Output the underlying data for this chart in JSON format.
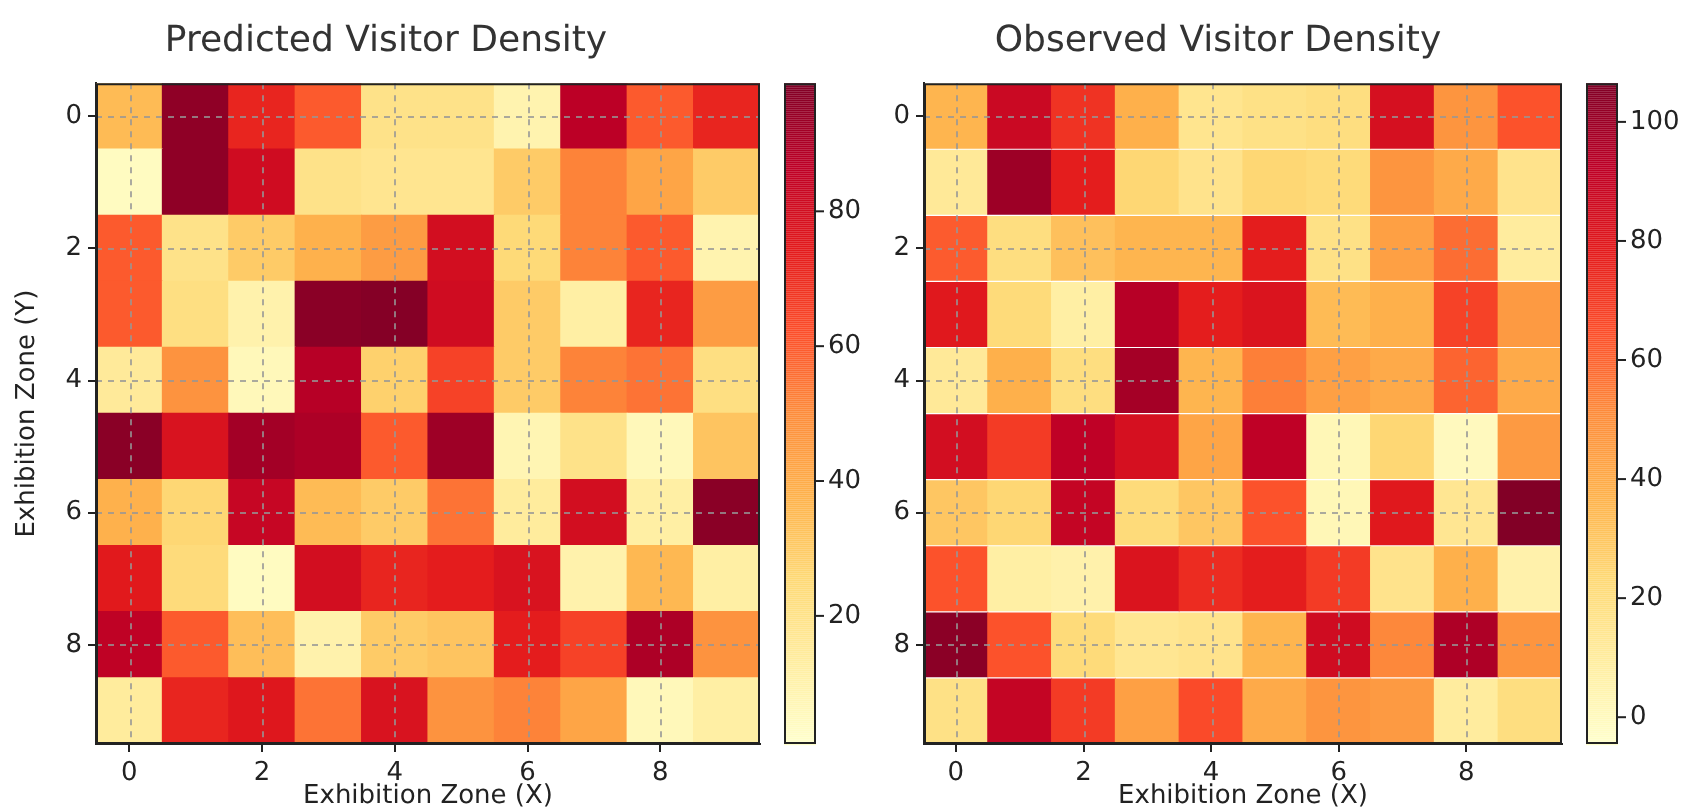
{
  "chart_data": [
    {
      "type": "heatmap",
      "title": "Predicted Visitor Density",
      "xlabel": "Exhibition Zone (X)",
      "ylabel": "Exhibition Zone (Y)",
      "categories": [
        "0",
        null,
        "2",
        null,
        "4",
        null,
        "6",
        null,
        "8",
        null
      ],
      "y_categories": [
        "0",
        null,
        "2",
        null,
        "4",
        null,
        "6",
        null,
        "8",
        null
      ],
      "cells": [
        [
          35,
          96,
          72,
          60,
          20,
          20,
          9,
          87,
          60,
          72
        ],
        [
          4,
          96,
          81,
          20,
          18,
          18,
          30,
          52,
          42,
          30
        ],
        [
          60,
          20,
          30,
          38,
          45,
          80,
          25,
          52,
          60,
          9
        ],
        [
          60,
          22,
          10,
          97,
          98,
          81,
          30,
          12,
          72,
          45
        ],
        [
          15,
          48,
          6,
          88,
          28,
          65,
          30,
          52,
          55,
          22
        ],
        [
          97,
          78,
          92,
          90,
          60,
          93,
          8,
          20,
          6,
          32
        ],
        [
          38,
          26,
          84,
          35,
          30,
          55,
          14,
          80,
          12,
          97
        ],
        [
          75,
          24,
          4,
          80,
          72,
          74,
          78,
          10,
          36,
          12
        ],
        [
          86,
          60,
          34,
          10,
          30,
          32,
          74,
          65,
          90,
          48
        ],
        [
          14,
          72,
          76,
          55,
          78,
          48,
          52,
          42,
          6,
          12
        ]
      ],
      "clim": [
        1,
        99
      ],
      "cticks": [
        20,
        40,
        60,
        80
      ],
      "grid": true
    },
    {
      "type": "heatmap",
      "title": "Observed Visitor Density",
      "xlabel": "Exhibition Zone (X)",
      "categories": [
        "0",
        null,
        "2",
        null,
        "4",
        null,
        "6",
        null,
        "8",
        null
      ],
      "y_categories": [
        "0",
        null,
        "2",
        null,
        "4",
        null,
        "6",
        null,
        "8",
        null
      ],
      "cells": [
        [
          36,
          88,
          72,
          38,
          15,
          18,
          20,
          84,
          48,
          64
        ],
        [
          12,
          100,
          78,
          24,
          16,
          24,
          22,
          48,
          40,
          16
        ],
        [
          62,
          20,
          32,
          36,
          36,
          78,
          18,
          44,
          58,
          10
        ],
        [
          80,
          22,
          8,
          94,
          78,
          82,
          34,
          38,
          68,
          46
        ],
        [
          12,
          38,
          20,
          98,
          36,
          54,
          44,
          40,
          60,
          40
        ],
        [
          85,
          70,
          92,
          84,
          42,
          92,
          2,
          24,
          0,
          46
        ],
        [
          30,
          24,
          90,
          22,
          30,
          64,
          2,
          80,
          14,
          106
        ],
        [
          64,
          8,
          6,
          82,
          74,
          78,
          70,
          16,
          38,
          6
        ],
        [
          104,
          64,
          22,
          14,
          16,
          36,
          86,
          52,
          96,
          48
        ],
        [
          18,
          90,
          70,
          44,
          66,
          40,
          48,
          46,
          10,
          20
        ]
      ],
      "clim": [
        -4.5,
        106.5
      ],
      "cticks": [
        0,
        20,
        40,
        60,
        80,
        100
      ],
      "grid": true
    }
  ]
}
